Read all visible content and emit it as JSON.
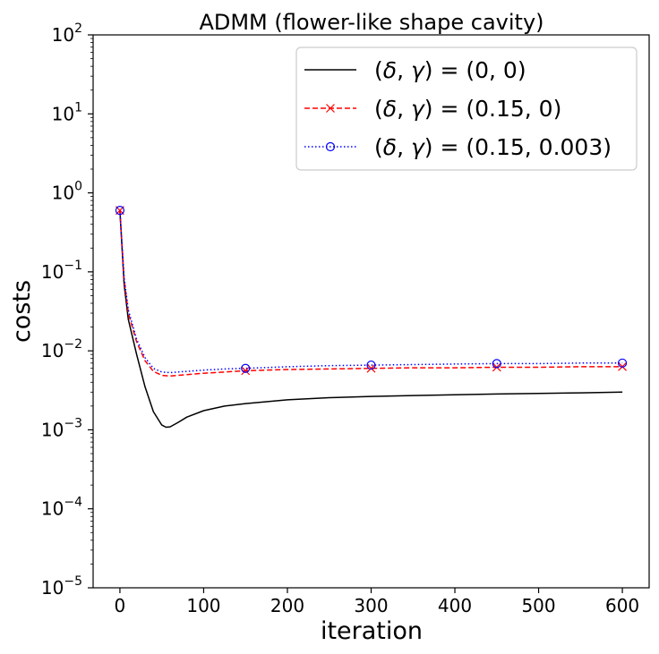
{
  "chart_data": {
    "type": "line",
    "title": "ADMM (flower-like shape cavity)",
    "xlabel": "iteration",
    "ylabel": "costs",
    "yscale": "log",
    "xlim": [
      -32,
      632
    ],
    "ylim": [
      1e-05,
      100
    ],
    "xticks": [
      0,
      100,
      200,
      300,
      400,
      500,
      600
    ],
    "xtick_labels": [
      "0",
      "100",
      "200",
      "300",
      "400",
      "500",
      "600"
    ],
    "yticks": [
      {
        "value": 1e-05,
        "base": "10",
        "exp": "−5"
      },
      {
        "value": 0.0001,
        "base": "10",
        "exp": "−4"
      },
      {
        "value": 0.001,
        "base": "10",
        "exp": "−3"
      },
      {
        "value": 0.01,
        "base": "10",
        "exp": "−2"
      },
      {
        "value": 0.1,
        "base": "10",
        "exp": "−1"
      },
      {
        "value": 1,
        "base": "10",
        "exp": "0"
      },
      {
        "value": 10,
        "base": "10",
        "exp": "1"
      },
      {
        "value": 100,
        "base": "10",
        "exp": "2"
      }
    ],
    "grid": false,
    "legend_position": "top-right",
    "series": [
      {
        "name": "(δ, γ) = (0, 0)",
        "color": "#000000",
        "style": "solid",
        "marker": "none",
        "x": [
          0,
          5,
          10,
          20,
          30,
          40,
          50,
          55,
          60,
          70,
          80,
          100,
          125,
          150,
          200,
          250,
          300,
          350,
          400,
          450,
          500,
          550,
          600
        ],
        "y": [
          0.6,
          0.07,
          0.025,
          0.009,
          0.0035,
          0.0017,
          0.00115,
          0.00108,
          0.00109,
          0.00125,
          0.00145,
          0.00175,
          0.002,
          0.00215,
          0.0024,
          0.00255,
          0.00265,
          0.00272,
          0.00278,
          0.00284,
          0.00289,
          0.00294,
          0.003
        ]
      },
      {
        "name": "(δ, γ) = (0.15, 0)",
        "color": "#ff0000",
        "style": "dashed",
        "marker": "x",
        "x": [
          0,
          5,
          10,
          20,
          30,
          40,
          50,
          60,
          70,
          80,
          100,
          125,
          150,
          200,
          250,
          300,
          350,
          400,
          450,
          500,
          550,
          600
        ],
        "y": [
          0.6,
          0.08,
          0.03,
          0.013,
          0.0075,
          0.0055,
          0.0049,
          0.0048,
          0.0049,
          0.005,
          0.0052,
          0.0054,
          0.0056,
          0.0058,
          0.0059,
          0.006,
          0.0061,
          0.0061,
          0.0062,
          0.0062,
          0.0063,
          0.0063
        ],
        "marker_x": [
          0,
          150,
          300,
          450,
          600
        ],
        "marker_y": [
          0.6,
          0.0056,
          0.006,
          0.0062,
          0.0063
        ]
      },
      {
        "name": "(δ, γ) = (0.15, 0.003)",
        "color": "#0000ff",
        "style": "dotted",
        "marker": "o",
        "x": [
          0,
          5,
          10,
          20,
          30,
          40,
          50,
          60,
          70,
          80,
          100,
          125,
          150,
          200,
          250,
          300,
          350,
          400,
          450,
          500,
          550,
          600
        ],
        "y": [
          0.6,
          0.085,
          0.033,
          0.014,
          0.0082,
          0.006,
          0.0054,
          0.0053,
          0.0054,
          0.0055,
          0.0057,
          0.0059,
          0.006,
          0.0063,
          0.0065,
          0.0066,
          0.0067,
          0.0068,
          0.0069,
          0.0069,
          0.007,
          0.007
        ],
        "marker_x": [
          0,
          150,
          300,
          450,
          600
        ],
        "marker_y": [
          0.6,
          0.006,
          0.0066,
          0.0069,
          0.007
        ]
      }
    ]
  }
}
